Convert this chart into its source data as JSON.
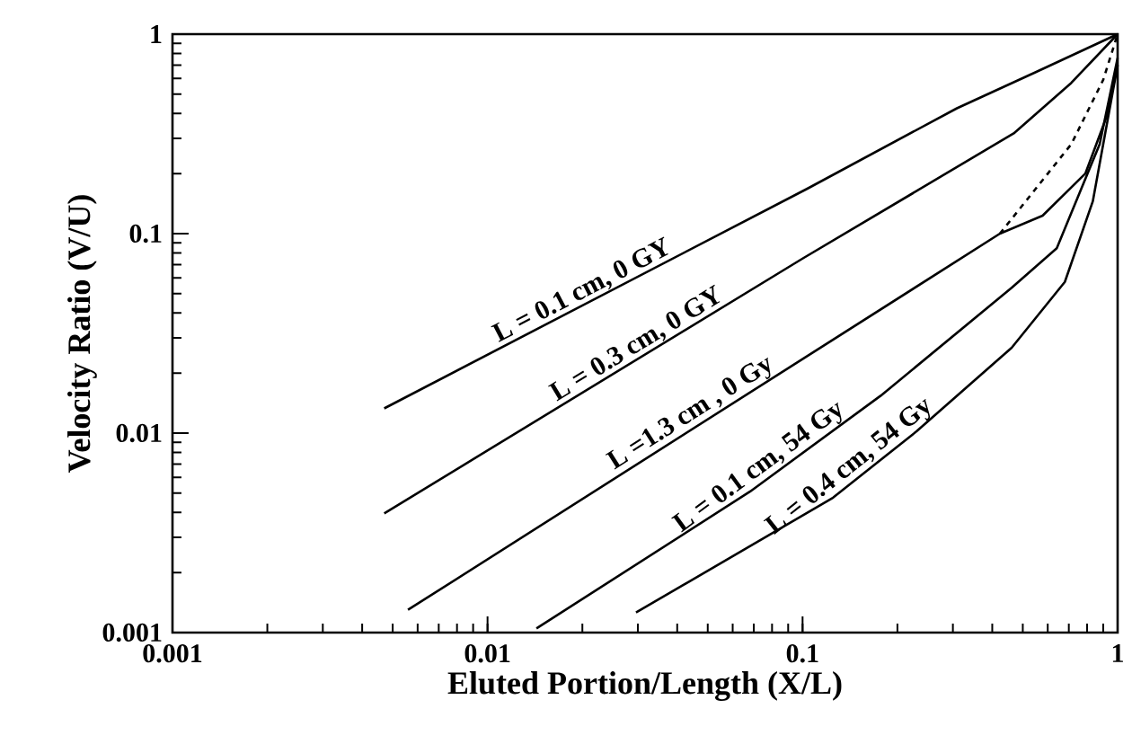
{
  "chart_data": {
    "type": "line",
    "xlabel": "Eluted Portion/Length (X/L)",
    "ylabel": "Velocity Ratio (V/U)",
    "log": "xy",
    "xlim": [
      0.001,
      1
    ],
    "ylim": [
      0.001,
      1
    ],
    "xticks": [
      0.001,
      0.01,
      0.1,
      1
    ],
    "yticks": [
      0.001,
      0.01,
      0.1,
      1
    ],
    "grid": false,
    "legend": false,
    "marker": "none",
    "series": [
      {
        "name": "L = 0.1 cm, 0 GY",
        "color": "#000000",
        "x": [
          0.0047,
          0.1035,
          0.309,
          0.55,
          1
        ],
        "values": [
          0.0133,
          0.168,
          0.425,
          0.645,
          1
        ]
      },
      {
        "name": "L = 0.3 cm, 0 GY",
        "color": "#000000",
        "x": [
          0.0047,
          0.1,
          0.468,
          0.713,
          1
        ],
        "values": [
          0.00396,
          0.075,
          0.318,
          0.57,
          1
        ]
      },
      {
        "name": "L =1.3 cm , 0 Gy",
        "color": "#000000",
        "x": [
          0.00559,
          0.423,
          0.578,
          0.79,
          0.925,
          1
        ],
        "values": [
          0.0013,
          0.1,
          0.123,
          0.2,
          0.39,
          0.7
        ]
      },
      {
        "color": "#000000",
        "line_style": "dashed",
        "x": [
          0.423,
          0.713,
          0.9,
          1
        ],
        "values": [
          0.1,
          0.281,
          0.59,
          1
        ]
      },
      {
        "name": "L = 0.1 cm, 54 Gy",
        "color": "#000000",
        "x": [
          0.0143,
          0.0682,
          0.177,
          0.461,
          0.641,
          0.877,
          1
        ],
        "values": [
          0.00105,
          0.0051,
          0.0154,
          0.0535,
          0.0845,
          0.281,
          0.76
        ]
      },
      {
        "name": "L = 0.4 cm, 54 Gy",
        "color": "#000000",
        "x": [
          0.0296,
          0.125,
          0.23,
          0.461,
          0.68,
          0.834,
          1
        ],
        "values": [
          0.00126,
          0.00475,
          0.0102,
          0.0268,
          0.0573,
          0.145,
          0.7
        ]
      }
    ]
  }
}
